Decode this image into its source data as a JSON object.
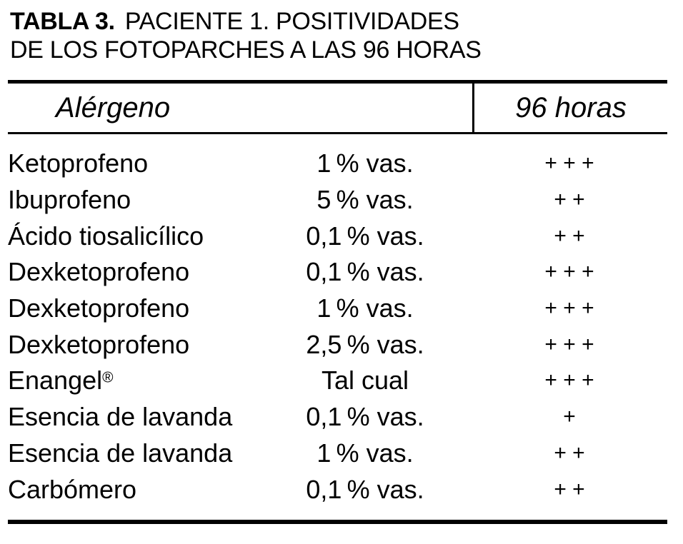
{
  "page": {
    "background": "#ffffff",
    "text_color": "#000000"
  },
  "title": {
    "label": "TABLA 3.",
    "line1_rest": "PACIENTE 1. POSITIVIDADES",
    "line2": "DE LOS FOTOPARCHES A LAS 96 HORAS"
  },
  "table": {
    "header": {
      "allergen": "Alérgeno",
      "hours": "96 horas"
    },
    "rows": [
      {
        "name": "Ketoprofeno",
        "sup": "",
        "concentration": "1 % vas.",
        "result": "+ + +"
      },
      {
        "name": "Ibuprofeno",
        "sup": "",
        "concentration": "5 % vas.",
        "result": "+ +"
      },
      {
        "name": "Ácido tiosalicílico",
        "sup": "",
        "concentration": "0,1 % vas.",
        "result": "+ +"
      },
      {
        "name": "Dexketoprofeno",
        "sup": "",
        "concentration": "0,1 % vas.",
        "result": "+ + +"
      },
      {
        "name": "Dexketoprofeno",
        "sup": "",
        "concentration": "1 % vas.",
        "result": "+ + +"
      },
      {
        "name": "Dexketoprofeno",
        "sup": "",
        "concentration": "2,5 % vas.",
        "result": "+ + +"
      },
      {
        "name": "Enangel",
        "sup": "®",
        "concentration": "Tal cual",
        "result": "+ + +"
      },
      {
        "name": "Esencia de lavanda",
        "sup": "",
        "concentration": "0,1 % vas.",
        "result": "+"
      },
      {
        "name": "Esencia de lavanda",
        "sup": "",
        "concentration": "1 % vas.",
        "result": "+ +"
      },
      {
        "name": "Carbómero",
        "sup": "",
        "concentration": "0,1 % vas.",
        "result": "+ +"
      }
    ]
  }
}
